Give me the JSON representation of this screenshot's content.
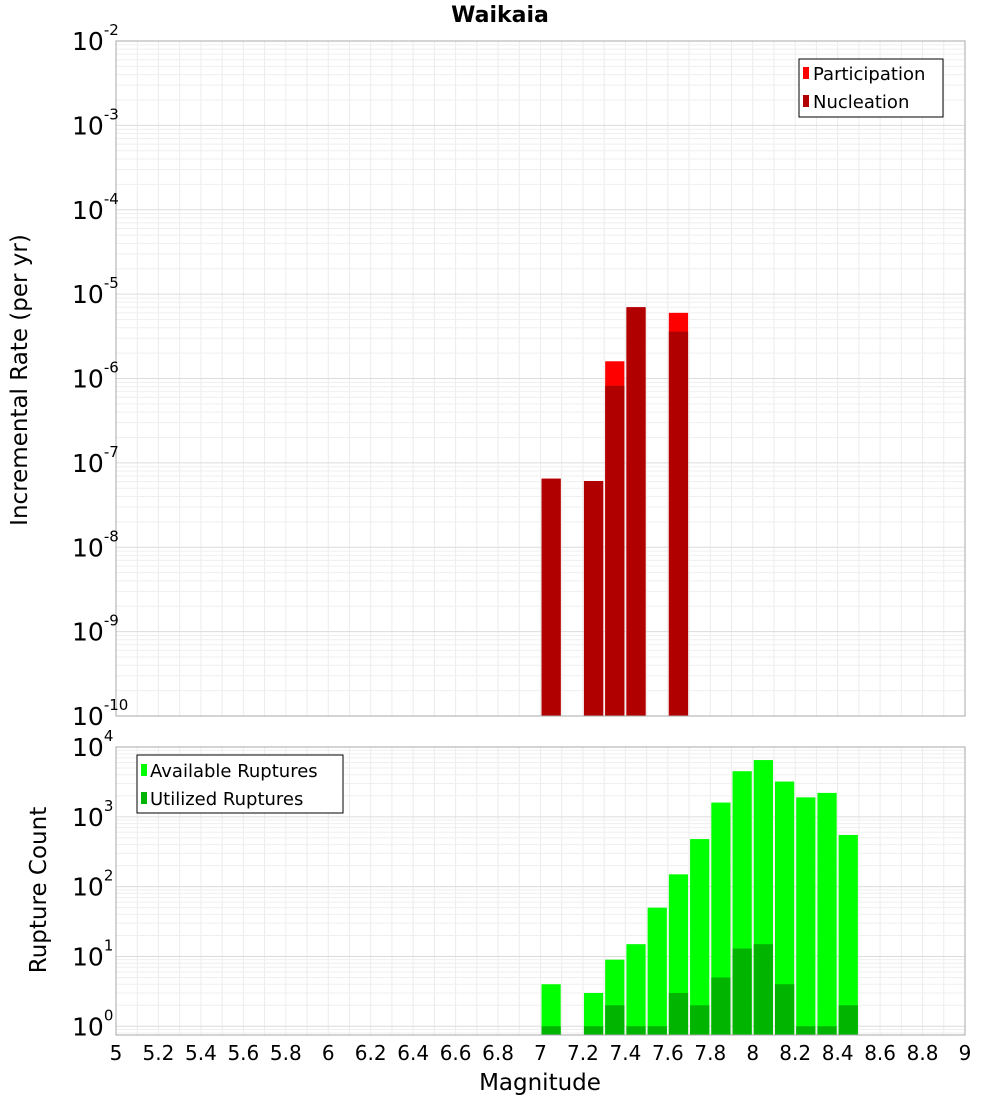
{
  "chart_data": [
    {
      "type": "bar",
      "title": "Waikaia",
      "xlabel": "",
      "ylabel": "Incremental Rate (per yr)",
      "y_scale": "log",
      "ylim": [
        1e-10,
        0.01
      ],
      "xlim": [
        5,
        9
      ],
      "grid": true,
      "legend_position": "top-right",
      "colors": {
        "Participation": "#ff0000",
        "Nucleation": "#b00000"
      },
      "y_ticks": [
        {
          "base": "10",
          "exp": "-10",
          "value": 1e-10
        },
        {
          "base": "10",
          "exp": "-9",
          "value": 1e-09
        },
        {
          "base": "10",
          "exp": "-8",
          "value": 1e-08
        },
        {
          "base": "10",
          "exp": "-7",
          "value": 1e-07
        },
        {
          "base": "10",
          "exp": "-6",
          "value": 1e-06
        },
        {
          "base": "10",
          "exp": "-5",
          "value": 1e-05
        },
        {
          "base": "10",
          "exp": "-4",
          "value": 0.0001
        },
        {
          "base": "10",
          "exp": "-3",
          "value": 0.001
        },
        {
          "base": "10",
          "exp": "-2",
          "value": 0.01
        }
      ],
      "x": [
        7.05,
        7.25,
        7.35,
        7.45,
        7.65
      ],
      "series": [
        {
          "name": "Participation",
          "values": [
            6.5e-08,
            6.1e-08,
            1.6e-06,
            7e-06,
            6e-06
          ]
        },
        {
          "name": "Nucleation",
          "values": [
            6.5e-08,
            6.1e-08,
            8.2e-07,
            7e-06,
            3.6e-06
          ]
        }
      ]
    },
    {
      "type": "bar",
      "title": "",
      "xlabel": "Magnitude",
      "ylabel": "Rupture Count",
      "y_scale": "log",
      "ylim": [
        0.75,
        10000
      ],
      "xlim": [
        5,
        9
      ],
      "grid": true,
      "legend_position": "top-left",
      "colors": {
        "Available Ruptures": "#00ff00",
        "Utilized Ruptures": "#00b400"
      },
      "x_ticks": [
        "5",
        "5.2",
        "5.4",
        "5.6",
        "5.8",
        "6",
        "6.2",
        "6.4",
        "6.6",
        "6.8",
        "7",
        "7.2",
        "7.4",
        "7.6",
        "7.8",
        "8",
        "8.2",
        "8.4",
        "8.6",
        "8.8",
        "9"
      ],
      "y_ticks": [
        {
          "base": "10",
          "exp": "0",
          "value": 1
        },
        {
          "base": "10",
          "exp": "1",
          "value": 10
        },
        {
          "base": "10",
          "exp": "2",
          "value": 100
        },
        {
          "base": "10",
          "exp": "3",
          "value": 1000
        },
        {
          "base": "10",
          "exp": "4",
          "value": 10000
        }
      ],
      "x": [
        7.05,
        7.25,
        7.35,
        7.45,
        7.55,
        7.65,
        7.75,
        7.85,
        7.95,
        8.05,
        8.15,
        8.25,
        8.35,
        8.45
      ],
      "series": [
        {
          "name": "Available Ruptures",
          "values": [
            4,
            3,
            9,
            15,
            50,
            150,
            480,
            1600,
            4500,
            6500,
            3200,
            1900,
            2200,
            550
          ]
        },
        {
          "name": "Utilized Ruptures",
          "values": [
            1,
            1,
            2,
            1,
            1,
            3,
            2,
            5,
            13,
            15,
            4,
            1,
            1,
            2
          ]
        }
      ]
    }
  ]
}
